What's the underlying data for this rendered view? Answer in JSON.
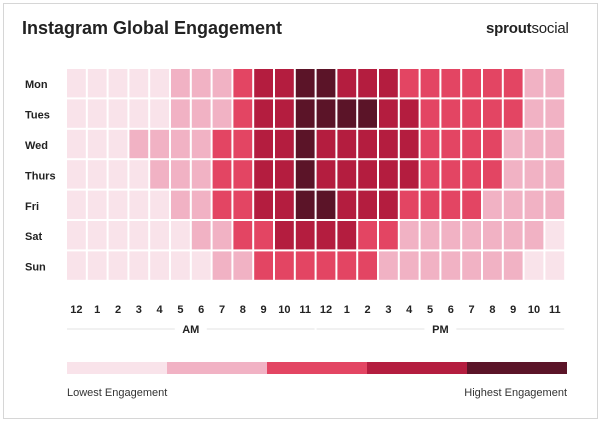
{
  "title": "Instagram Global Engagement",
  "brand": {
    "part1": "sprout",
    "part2": "social"
  },
  "chart_data": {
    "type": "heatmap",
    "title": "Instagram Global Engagement",
    "y_categories": [
      "Mon",
      "Tues",
      "Wed",
      "Thurs",
      "Fri",
      "Sat",
      "Sun"
    ],
    "x_categories": [
      "12",
      "1",
      "2",
      "3",
      "4",
      "5",
      "6",
      "7",
      "8",
      "9",
      "10",
      "11",
      "12",
      "1",
      "2",
      "3",
      "4",
      "5",
      "6",
      "7",
      "8",
      "9",
      "10",
      "11"
    ],
    "x_groups": [
      {
        "label": "AM"
      },
      {
        "label": "PM"
      }
    ],
    "color_scale": [
      "#f9e3ea",
      "#f1b2c4",
      "#e34563",
      "#b41d3f",
      "#5b1428"
    ],
    "values": [
      [
        0,
        0,
        0,
        0,
        0,
        1,
        1,
        1,
        2,
        3,
        3,
        4,
        4,
        3,
        3,
        3,
        2,
        2,
        2,
        2,
        2,
        2,
        1,
        1
      ],
      [
        0,
        0,
        0,
        0,
        0,
        1,
        1,
        1,
        2,
        3,
        3,
        4,
        4,
        4,
        4,
        3,
        3,
        2,
        2,
        2,
        2,
        2,
        1,
        1
      ],
      [
        0,
        0,
        0,
        1,
        1,
        1,
        1,
        2,
        2,
        3,
        3,
        4,
        3,
        3,
        3,
        3,
        3,
        2,
        2,
        2,
        2,
        1,
        1,
        1
      ],
      [
        0,
        0,
        0,
        0,
        1,
        1,
        1,
        2,
        2,
        3,
        3,
        4,
        3,
        3,
        3,
        3,
        3,
        2,
        2,
        2,
        2,
        1,
        1,
        1
      ],
      [
        0,
        0,
        0,
        0,
        0,
        1,
        1,
        2,
        2,
        3,
        3,
        4,
        4,
        3,
        3,
        3,
        2,
        2,
        2,
        2,
        1,
        1,
        1,
        1
      ],
      [
        0,
        0,
        0,
        0,
        0,
        0,
        1,
        1,
        2,
        2,
        3,
        3,
        3,
        3,
        2,
        2,
        1,
        1,
        1,
        1,
        1,
        1,
        1,
        0
      ],
      [
        0,
        0,
        0,
        0,
        0,
        0,
        0,
        1,
        1,
        2,
        2,
        2,
        2,
        2,
        2,
        1,
        1,
        1,
        1,
        1,
        1,
        1,
        0,
        0
      ]
    ],
    "legend": {
      "low_label": "Lowest Engagement",
      "high_label": "Highest Engagement"
    }
  }
}
